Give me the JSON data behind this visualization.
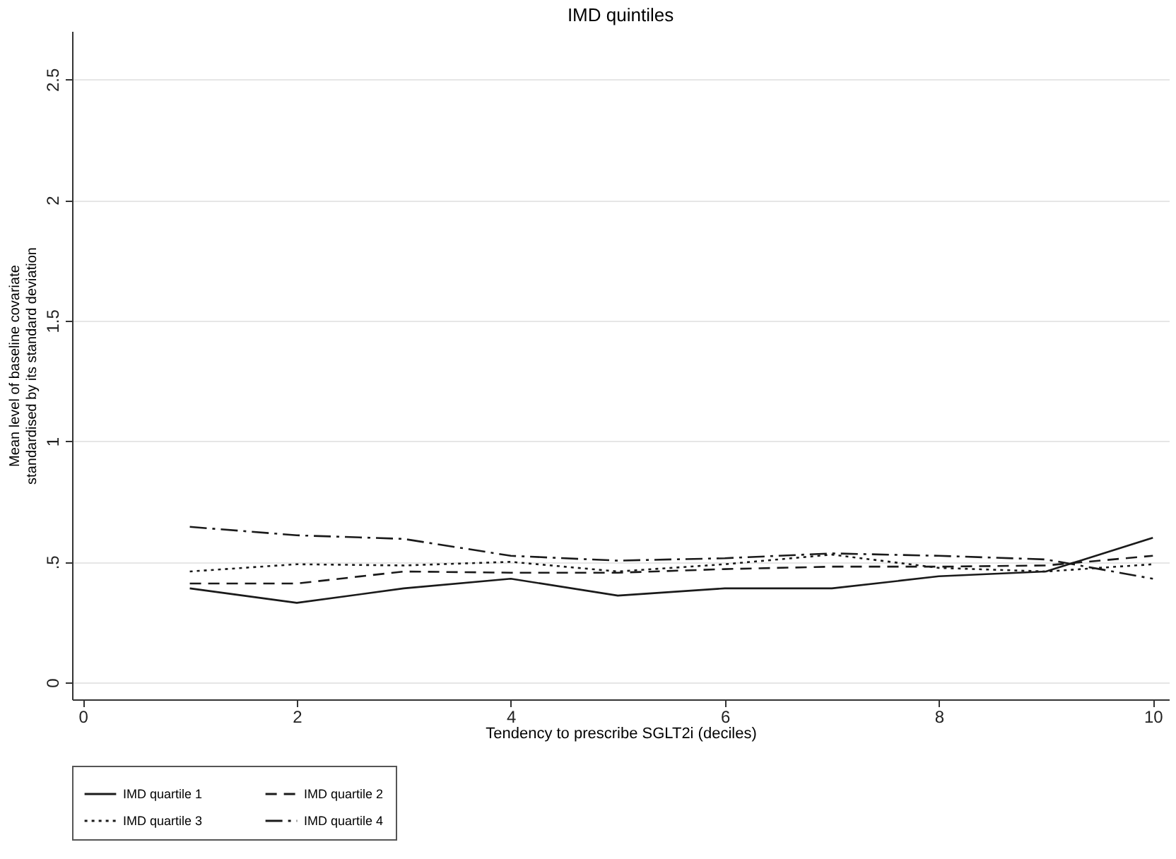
{
  "chart_data": {
    "type": "line",
    "title": "IMD quintiles",
    "xlabel": "Tendency to prescribe SGLT2i (deciles)",
    "ylabel": "Mean level of baseline covariate\nstandardised by its standard deviation",
    "x": [
      1,
      2,
      3,
      4,
      5,
      6,
      7,
      8,
      9,
      10
    ],
    "xlim": [
      -0.1,
      10.15
    ],
    "xticks": [
      0,
      2,
      4,
      6,
      8,
      10
    ],
    "ylim": [
      -0.07,
      2.7
    ],
    "yticks": [
      0,
      {
        "value": 0.5,
        "label": ".5"
      },
      1,
      1.5,
      2,
      2.5
    ],
    "grid": "y",
    "legend": "bottom",
    "marker": "none",
    "series": [
      {
        "name": "IMD quartile 1",
        "color": "#1a1a1a",
        "line_style": "solid",
        "values": [
          0.39,
          0.33,
          0.39,
          0.43,
          0.36,
          0.39,
          0.39,
          0.44,
          0.46,
          0.6
        ]
      },
      {
        "name": "IMD quartile 2",
        "color": "#1a1a1a",
        "line_style": "dashed",
        "values": [
          0.41,
          0.41,
          0.46,
          0.455,
          0.455,
          0.47,
          0.48,
          0.48,
          0.485,
          0.525
        ]
      },
      {
        "name": "IMD quartile 3",
        "color": "#1a1a1a",
        "line_style": "dotted",
        "values": [
          0.46,
          0.49,
          0.485,
          0.5,
          0.46,
          0.49,
          0.53,
          0.475,
          0.46,
          0.49
        ]
      },
      {
        "name": "IMD quartile 4",
        "color": "#1a1a1a",
        "line_style": "dashdot",
        "values": [
          0.645,
          0.61,
          0.595,
          0.525,
          0.505,
          0.515,
          0.535,
          0.525,
          0.51,
          0.43
        ]
      }
    ]
  }
}
